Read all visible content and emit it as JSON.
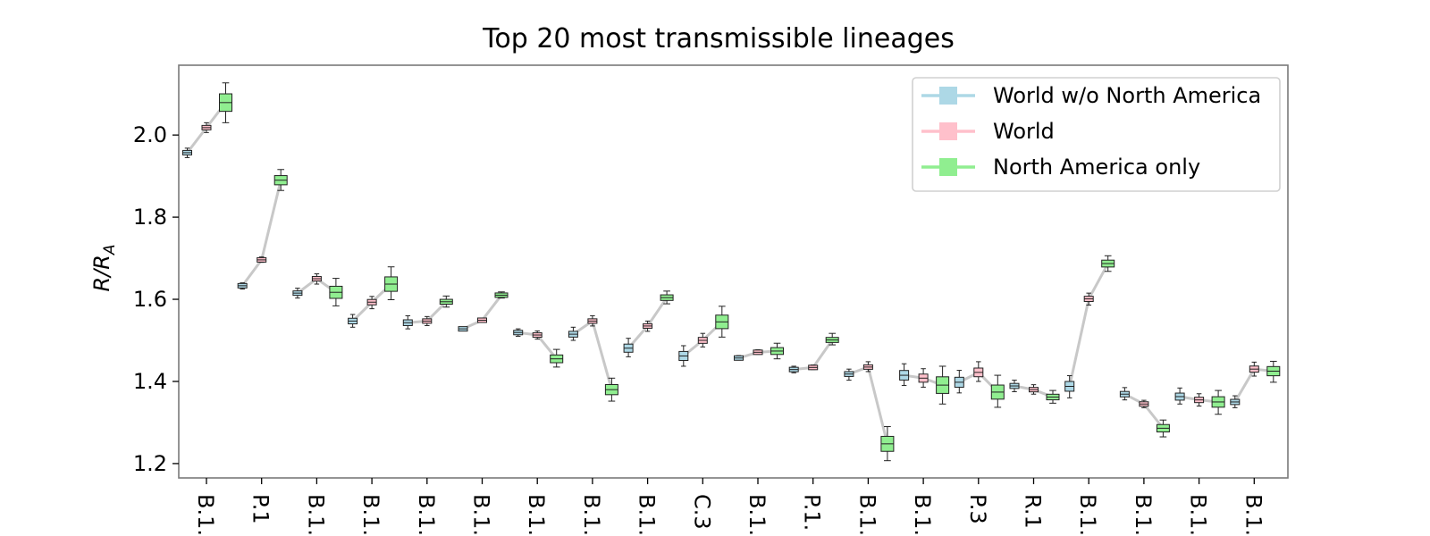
{
  "chart_data": {
    "type": "box",
    "title": "Top 20 most transmissible lineages",
    "ylabel": {
      "main": "R/R",
      "sub": "A"
    },
    "ylim": [
      1.165,
      2.17
    ],
    "yticks": [
      1.2,
      1.4,
      1.6,
      1.8,
      2.0
    ],
    "ytick_labels": [
      "1.2",
      "1.4",
      "1.6",
      "1.8",
      "2.0"
    ],
    "grid": false,
    "legend_position": "upper right",
    "categories": [
      "B.1.",
      "P.1",
      "B.1.",
      "B.1.",
      "B.1.",
      "B.1.",
      "B.1.",
      "B.1.",
      "B.1.",
      "C.3",
      "B.1.",
      "P.1.",
      "B.1.",
      "B.1.",
      "P.3",
      "R.1",
      "B.1.",
      "B.1.",
      "B.1.",
      "B.1."
    ],
    "connector_color": "#c8c8c8",
    "series": [
      {
        "name": "World w/o North America",
        "color": "#add8e6",
        "values": [
          1.957,
          1.633,
          1.615,
          1.547,
          1.543,
          1.528,
          1.519,
          1.515,
          1.481,
          1.462,
          1.457,
          1.429,
          1.418,
          1.415,
          1.398,
          1.389,
          1.388,
          1.369,
          1.363,
          1.35
        ],
        "whiskers": [
          [
            1.945,
            1.968
          ],
          [
            1.625,
            1.64
          ],
          [
            1.603,
            1.627
          ],
          [
            1.532,
            1.563
          ],
          [
            1.528,
            1.56
          ],
          [
            1.526,
            1.53
          ],
          [
            1.51,
            1.528
          ],
          [
            1.5,
            1.532
          ],
          [
            1.46,
            1.505
          ],
          [
            1.437,
            1.487
          ],
          [
            1.452,
            1.463
          ],
          [
            1.421,
            1.437
          ],
          [
            1.403,
            1.43
          ],
          [
            1.39,
            1.443
          ],
          [
            1.372,
            1.427
          ],
          [
            1.375,
            1.403
          ],
          [
            1.36,
            1.414
          ],
          [
            1.355,
            1.385
          ],
          [
            1.345,
            1.384
          ],
          [
            1.336,
            1.365
          ]
        ]
      },
      {
        "name": "World",
        "color": "#ffc0cb",
        "values": [
          2.018,
          1.696,
          1.65,
          1.593,
          1.547,
          1.549,
          1.513,
          1.547,
          1.535,
          1.5,
          1.471,
          1.434,
          1.435,
          1.408,
          1.422,
          1.38,
          1.601,
          1.345,
          1.355,
          1.43
        ],
        "whiskers": [
          [
            2.006,
            2.03
          ],
          [
            1.69,
            1.703
          ],
          [
            1.637,
            1.662
          ],
          [
            1.577,
            1.607
          ],
          [
            1.536,
            1.558
          ],
          [
            1.546,
            1.553
          ],
          [
            1.503,
            1.523
          ],
          [
            1.535,
            1.56
          ],
          [
            1.522,
            1.547
          ],
          [
            1.484,
            1.517
          ],
          [
            1.466,
            1.477
          ],
          [
            1.429,
            1.44
          ],
          [
            1.424,
            1.448
          ],
          [
            1.386,
            1.431
          ],
          [
            1.4,
            1.448
          ],
          [
            1.369,
            1.392
          ],
          [
            1.586,
            1.615
          ],
          [
            1.336,
            1.354
          ],
          [
            1.34,
            1.37
          ],
          [
            1.413,
            1.447
          ]
        ]
      },
      {
        "name": "North America only",
        "color": "#90ee90",
        "values": [
          2.079,
          1.89,
          1.617,
          1.637,
          1.594,
          1.61,
          1.455,
          1.38,
          1.604,
          1.545,
          1.474,
          1.501,
          1.248,
          1.391,
          1.374,
          1.362,
          1.687,
          1.286,
          1.35,
          1.425
        ],
        "whiskers": [
          [
            2.03,
            2.127
          ],
          [
            1.865,
            1.916
          ],
          [
            1.584,
            1.651
          ],
          [
            1.599,
            1.679
          ],
          [
            1.581,
            1.608
          ],
          [
            1.603,
            1.618
          ],
          [
            1.435,
            1.478
          ],
          [
            1.352,
            1.408
          ],
          [
            1.589,
            1.62
          ],
          [
            1.508,
            1.583
          ],
          [
            1.455,
            1.493
          ],
          [
            1.489,
            1.517
          ],
          [
            1.207,
            1.29
          ],
          [
            1.345,
            1.437
          ],
          [
            1.337,
            1.415
          ],
          [
            1.347,
            1.378
          ],
          [
            1.668,
            1.706
          ],
          [
            1.265,
            1.306
          ],
          [
            1.32,
            1.378
          ],
          [
            1.398,
            1.449
          ]
        ]
      }
    ],
    "colors": {
      "axes_edge": "#7a7a7a",
      "legend_edge": "#d0d0d0",
      "box_edge": "#222222"
    }
  }
}
